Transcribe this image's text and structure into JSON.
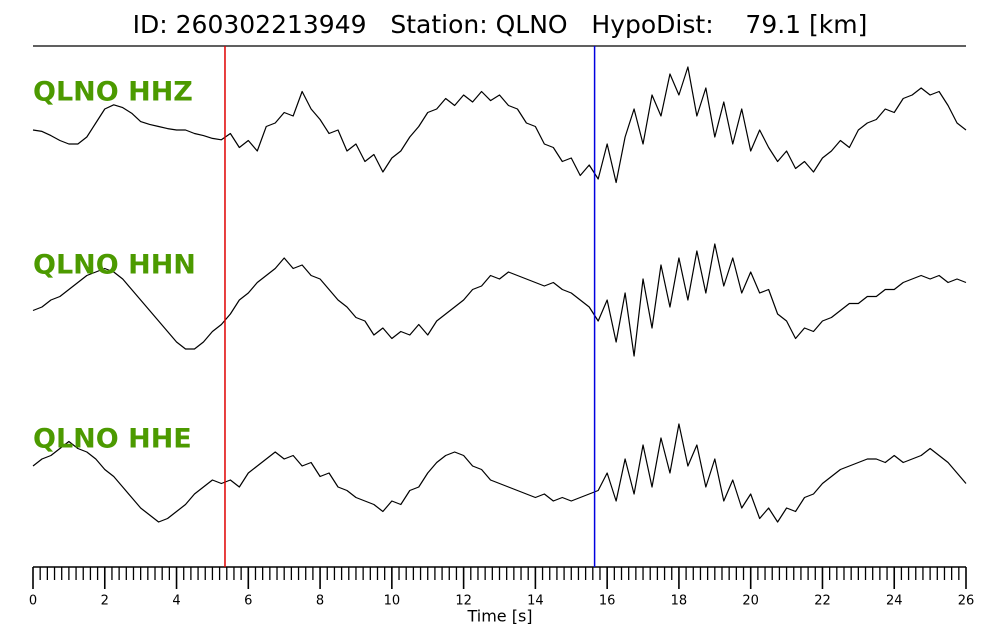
{
  "chart_data": {
    "type": "line",
    "title": "ID: 260302213949   Station: QLNO   HypoDist:    79.1 [km]",
    "xlabel": "Time [s]",
    "xlim": [
      0,
      26
    ],
    "xticks": [
      0,
      2,
      4,
      6,
      8,
      10,
      12,
      14,
      16,
      18,
      20,
      22,
      24,
      26
    ],
    "xminorticks": [
      0.2,
      0.4,
      0.6,
      0.8,
      1,
      1.2,
      1.4,
      1.6,
      1.8,
      2.2,
      2.4,
      2.6,
      2.8,
      3,
      3.2,
      3.4,
      3.6,
      3.8,
      4.2,
      4.4,
      4.6,
      4.8,
      5,
      5.2,
      5.4,
      5.6,
      5.8,
      6.2,
      6.4,
      6.6,
      6.8,
      7,
      7.2,
      7.4,
      7.6,
      7.8,
      8.2,
      8.4,
      8.6,
      8.8,
      9,
      9.2,
      9.4,
      9.6,
      9.8,
      10.2,
      10.4,
      10.6,
      10.8,
      11,
      11.2,
      11.4,
      11.6,
      11.8,
      12.2,
      12.4,
      12.6,
      12.8,
      13,
      13.2,
      13.4,
      13.6,
      13.8,
      14.2,
      14.4,
      14.6,
      14.8,
      15,
      15.2,
      15.4,
      15.6,
      15.8,
      16.2,
      16.4,
      16.6,
      16.8,
      17,
      17.2,
      17.4,
      17.6,
      17.8,
      18.2,
      18.4,
      18.6,
      18.8,
      19,
      19.2,
      19.4,
      19.6,
      19.8,
      20.2,
      20.4,
      20.6,
      20.8,
      21,
      21.2,
      21.4,
      21.6,
      21.8,
      22.2,
      22.4,
      22.6,
      22.8,
      23,
      23.2,
      23.4,
      23.6,
      23.8,
      24.2,
      24.4,
      24.6,
      24.8,
      25,
      25.2,
      25.4,
      25.6,
      25.8
    ],
    "markers": [
      {
        "x": 5.35,
        "color": "#e00000"
      },
      {
        "x": 15.65,
        "color": "#0000e0"
      }
    ],
    "label_color": "#4c9a00",
    "x": [
      0,
      0.25,
      0.5,
      0.75,
      1,
      1.25,
      1.5,
      1.75,
      2,
      2.25,
      2.5,
      2.75,
      3,
      3.25,
      3.5,
      3.75,
      4,
      4.25,
      4.5,
      4.75,
      5,
      5.25,
      5.5,
      5.75,
      6,
      6.25,
      6.5,
      6.75,
      7,
      7.25,
      7.5,
      7.75,
      8,
      8.25,
      8.5,
      8.75,
      9,
      9.25,
      9.5,
      9.75,
      10,
      10.25,
      10.5,
      10.75,
      11,
      11.25,
      11.5,
      11.75,
      12,
      12.25,
      12.5,
      12.75,
      13,
      13.25,
      13.5,
      13.75,
      14,
      14.25,
      14.5,
      14.75,
      15,
      15.25,
      15.5,
      15.75,
      16,
      16.25,
      16.5,
      16.75,
      17,
      17.25,
      17.5,
      17.75,
      18,
      18.25,
      18.5,
      18.75,
      19,
      19.25,
      19.5,
      19.75,
      20,
      20.25,
      20.5,
      20.75,
      21,
      21.25,
      21.5,
      21.75,
      22,
      22.25,
      22.5,
      22.75,
      23,
      23.25,
      23.5,
      23.75,
      24,
      24.25,
      24.5,
      24.75,
      25,
      25.25,
      25.5,
      25.75,
      26
    ],
    "series": [
      {
        "name": "QLNO HHZ",
        "color": "#000000",
        "values": [
          0,
          -0.02,
          -0.08,
          -0.15,
          -0.2,
          -0.2,
          -0.1,
          0.1,
          0.3,
          0.36,
          0.32,
          0.24,
          0.12,
          0.08,
          0.05,
          0.02,
          0,
          0,
          -0.05,
          -0.08,
          -0.12,
          -0.14,
          -0.05,
          -0.25,
          -0.15,
          -0.3,
          0.05,
          0.1,
          0.25,
          0.2,
          0.55,
          0.3,
          0.15,
          -0.05,
          0,
          -0.3,
          -0.2,
          -0.45,
          -0.35,
          -0.6,
          -0.4,
          -0.3,
          -0.1,
          0.05,
          0.25,
          0.3,
          0.45,
          0.35,
          0.5,
          0.4,
          0.55,
          0.42,
          0.5,
          0.35,
          0.3,
          0.1,
          0.05,
          -0.2,
          -0.25,
          -0.45,
          -0.4,
          -0.65,
          -0.5,
          -0.7,
          -0.2,
          -0.75,
          -0.1,
          0.3,
          -0.2,
          0.5,
          0.2,
          0.8,
          0.5,
          0.9,
          0.2,
          0.6,
          -0.1,
          0.4,
          -0.2,
          0.3,
          -0.3,
          0,
          -0.25,
          -0.45,
          -0.3,
          -0.55,
          -0.45,
          -0.6,
          -0.4,
          -0.3,
          -0.15,
          -0.25,
          0,
          0.1,
          0.15,
          0.3,
          0.25,
          0.45,
          0.5,
          0.6,
          0.5,
          0.55,
          0.35,
          0.1,
          0
        ]
      },
      {
        "name": "QLNO HHN",
        "color": "#000000",
        "values": [
          -0.15,
          -0.1,
          0,
          0.05,
          0.15,
          0.25,
          0.35,
          0.4,
          0.45,
          0.4,
          0.3,
          0.15,
          0,
          -0.15,
          -0.3,
          -0.45,
          -0.6,
          -0.7,
          -0.7,
          -0.6,
          -0.45,
          -0.35,
          -0.2,
          0,
          0.1,
          0.25,
          0.35,
          0.45,
          0.6,
          0.45,
          0.5,
          0.35,
          0.3,
          0.15,
          0,
          -0.1,
          -0.25,
          -0.3,
          -0.5,
          -0.4,
          -0.55,
          -0.45,
          -0.5,
          -0.35,
          -0.5,
          -0.3,
          -0.2,
          -0.1,
          0,
          0.15,
          0.2,
          0.35,
          0.3,
          0.4,
          0.35,
          0.3,
          0.25,
          0.2,
          0.25,
          0.15,
          0.1,
          0,
          -0.1,
          -0.3,
          0,
          -0.6,
          0.1,
          -0.8,
          0.3,
          -0.4,
          0.5,
          -0.1,
          0.6,
          0,
          0.7,
          0.1,
          0.8,
          0.2,
          0.6,
          0.1,
          0.4,
          0.1,
          0.15,
          -0.2,
          -0.3,
          -0.55,
          -0.4,
          -0.45,
          -0.3,
          -0.25,
          -0.15,
          -0.05,
          -0.05,
          0.05,
          0.05,
          0.15,
          0.15,
          0.25,
          0.3,
          0.35,
          0.3,
          0.35,
          0.25,
          0.3,
          0.25
        ]
      },
      {
        "name": "QLNO HHE",
        "color": "#000000",
        "values": [
          0.2,
          0.3,
          0.35,
          0.45,
          0.55,
          0.45,
          0.4,
          0.3,
          0.15,
          0.05,
          -0.1,
          -0.25,
          -0.4,
          -0.5,
          -0.6,
          -0.55,
          -0.45,
          -0.35,
          -0.2,
          -0.1,
          0,
          -0.05,
          0,
          -0.1,
          0.1,
          0.2,
          0.3,
          0.4,
          0.3,
          0.35,
          0.2,
          0.25,
          0.05,
          0.1,
          -0.1,
          -0.15,
          -0.25,
          -0.3,
          -0.35,
          -0.45,
          -0.3,
          -0.35,
          -0.15,
          -0.1,
          0.1,
          0.25,
          0.35,
          0.4,
          0.35,
          0.2,
          0.15,
          0,
          -0.05,
          -0.1,
          -0.15,
          -0.2,
          -0.25,
          -0.2,
          -0.3,
          -0.25,
          -0.3,
          -0.25,
          -0.2,
          -0.15,
          0.1,
          -0.3,
          0.3,
          -0.2,
          0.5,
          -0.1,
          0.6,
          0.1,
          0.8,
          0.2,
          0.5,
          -0.1,
          0.3,
          -0.3,
          0,
          -0.4,
          -0.2,
          -0.55,
          -0.4,
          -0.6,
          -0.4,
          -0.45,
          -0.25,
          -0.2,
          -0.05,
          0.05,
          0.15,
          0.2,
          0.25,
          0.3,
          0.3,
          0.25,
          0.35,
          0.25,
          0.3,
          0.35,
          0.45,
          0.35,
          0.25,
          0.1,
          -0.05
        ]
      }
    ]
  }
}
